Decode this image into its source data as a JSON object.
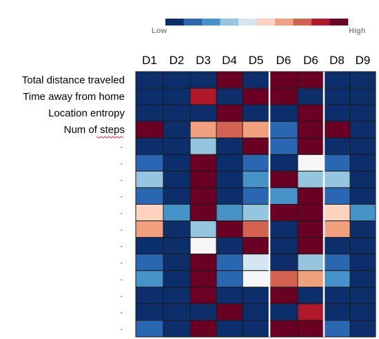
{
  "chart_data": {
    "type": "heatmap",
    "columns": [
      "D1",
      "D2",
      "D3",
      "D4",
      "D5",
      "D6",
      "D6",
      "D8",
      "D9"
    ],
    "rows": [
      "Total distance traveled",
      "Time away from home",
      "Location entropy",
      "Num of steps",
      ".",
      ".",
      ".",
      ".",
      ".",
      ".",
      ".",
      ".",
      ".",
      ".",
      ".",
      "."
    ],
    "scale": {
      "low_label": "Low",
      "high_label": "High",
      "levels": 10,
      "colors": [
        "#0c2f6b",
        "#2a67b2",
        "#4593c8",
        "#95c6e0",
        "#d3e6f2",
        "#f6f6f6",
        "#fbd3bf",
        "#f0a07c",
        "#d46250",
        "#b2182b",
        "#6a0024"
      ]
    },
    "values": [
      [
        0,
        0,
        0,
        10,
        0,
        10,
        10,
        0,
        0
      ],
      [
        0,
        0,
        9,
        0,
        10,
        10,
        0,
        0,
        0
      ],
      [
        0,
        0,
        0,
        10,
        0,
        0,
        10,
        0,
        0
      ],
      [
        10,
        0,
        7,
        8,
        7,
        1,
        10,
        10,
        0
      ],
      [
        0,
        0,
        3,
        0,
        10,
        1,
        10,
        0,
        0
      ],
      [
        1,
        0,
        10,
        0,
        1,
        0,
        5,
        1,
        0
      ],
      [
        3,
        0,
        10,
        0,
        2,
        10,
        3,
        3,
        0
      ],
      [
        1,
        0,
        10,
        0,
        1,
        2,
        10,
        1,
        0
      ],
      [
        6,
        2,
        10,
        2,
        3,
        10,
        10,
        6,
        2
      ],
      [
        7,
        0,
        3,
        10,
        8,
        0,
        10,
        7,
        0
      ],
      [
        0,
        0,
        5,
        0,
        10,
        0,
        10,
        0,
        0
      ],
      [
        1,
        0,
        10,
        1,
        4,
        0,
        3,
        1,
        0
      ],
      [
        2,
        0,
        10,
        1,
        5,
        8,
        7,
        2,
        0
      ],
      [
        0,
        0,
        10,
        0,
        0,
        10,
        0,
        0,
        0
      ],
      [
        0,
        0,
        0,
        10,
        0,
        0,
        9,
        0,
        0
      ],
      [
        1,
        0,
        10,
        0,
        0,
        10,
        10,
        1,
        0
      ]
    ]
  }
}
